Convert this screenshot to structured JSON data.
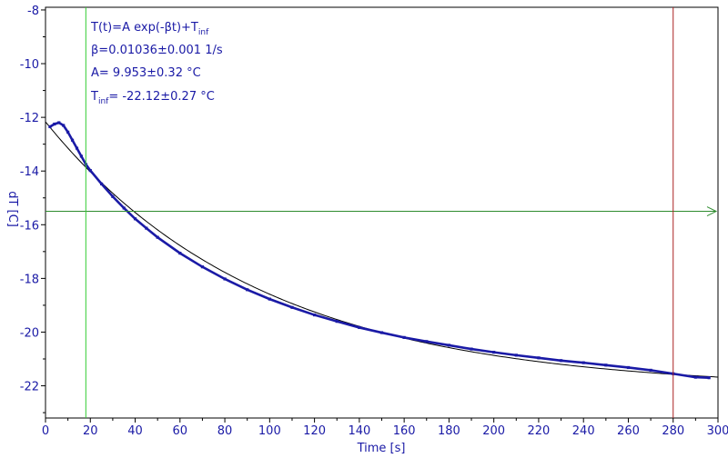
{
  "chart_data": {
    "type": "scatter",
    "xlabel": "Time [s]",
    "ylabel": "dT [C]",
    "xlim": [
      0,
      300
    ],
    "ylim": [
      -23.2,
      -7.9
    ],
    "x_ticks": [
      0,
      20,
      40,
      60,
      80,
      100,
      120,
      140,
      160,
      180,
      200,
      220,
      240,
      260,
      280,
      300
    ],
    "y_ticks": [
      -8,
      -10,
      -12,
      -14,
      -16,
      -18,
      -20,
      -22
    ],
    "grid": false,
    "colors": {
      "data": "#1a1aa6",
      "fit": "#000000",
      "horizontal_marker": "#2e8b2e",
      "vertical_marker_green": "#33cc33",
      "vertical_marker_red": "#aa2222",
      "axes": "#000000",
      "labels": "#1a1aa6"
    },
    "fit": {
      "A": 9.953,
      "beta": 0.01036,
      "T_inf": -22.12,
      "x_range": [
        0,
        300
      ]
    },
    "measured": {
      "x": [
        2,
        4,
        6,
        8,
        10,
        12,
        14,
        16,
        18,
        20,
        25,
        30,
        35,
        40,
        45,
        50,
        60,
        70,
        80,
        90,
        100,
        110,
        120,
        130,
        140,
        150,
        160,
        170,
        180,
        190,
        200,
        210,
        220,
        230,
        240,
        250,
        260,
        270,
        280,
        290,
        296
      ],
      "y": [
        -12.35,
        -12.25,
        -12.2,
        -12.3,
        -12.55,
        -12.85,
        -13.15,
        -13.45,
        -13.75,
        -13.98,
        -14.48,
        -14.95,
        -15.38,
        -15.78,
        -16.13,
        -16.47,
        -17.06,
        -17.57,
        -18.02,
        -18.42,
        -18.77,
        -19.08,
        -19.36,
        -19.6,
        -19.83,
        -20.02,
        -20.2,
        -20.35,
        -20.49,
        -20.63,
        -20.75,
        -20.86,
        -20.96,
        -21.06,
        -21.14,
        -21.23,
        -21.32,
        -21.42,
        -21.55,
        -21.68,
        -21.7
      ]
    },
    "markers": {
      "vertical_green_x": 18,
      "vertical_red_x": 280,
      "horizontal_y": -15.5
    },
    "annotations": {
      "line1_main": "T(t)=A exp(-βt)+T",
      "line1_sub": "inf",
      "line2": "β=0.01036±0.001 1/s",
      "line3": "A= 9.953±0.32 °C",
      "line4_main": "T",
      "line4_sub": "inf",
      "line4_rest": "= -22.12±0.27 °C"
    }
  }
}
